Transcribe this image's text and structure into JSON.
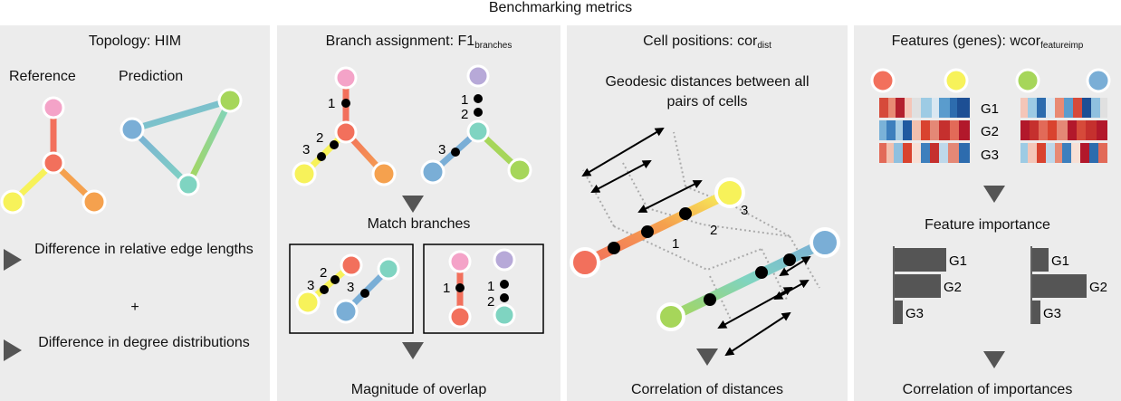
{
  "title": "Benchmarking metrics",
  "panels": {
    "topology": {
      "title": "Topology: HIM",
      "reference_label": "Reference",
      "prediction_label": "Prediction",
      "item1": "Difference in relative edge lengths",
      "plus": "+",
      "item2": "Difference in degree distributions"
    },
    "branch": {
      "title_main": "Branch assignment: F1",
      "title_sub": "branches",
      "match_label": "Match branches",
      "result_label": "Magnitude of overlap",
      "numbers": [
        "1",
        "2",
        "3"
      ]
    },
    "cells": {
      "title_main": "Cell positions: cor",
      "title_sub": "dist",
      "description": "Geodesic distances between all pairs of cells",
      "result_label": "Correlation of distances",
      "numbers": [
        "1",
        "2",
        "3"
      ]
    },
    "features": {
      "title_main": "Features (genes): wcor",
      "title_sub": "featureimp",
      "genes": [
        "G1",
        "G2",
        "G3"
      ],
      "importance_label": "Feature importance",
      "result_label": "Correlation of importances",
      "importance_ref": [
        0.95,
        0.85,
        0.15
      ],
      "importance_pred": [
        0.3,
        1.0,
        0.15
      ]
    }
  },
  "colors": {
    "panel_bg": "#ececec",
    "pink": "#f4a3c8",
    "red": "#f2705c",
    "yellow": "#f7f25a",
    "orange": "#f5a14e",
    "blue": "#7aaed6",
    "green": "#a6d65a",
    "teal": "#7fd4c1",
    "lavender": "#b7a9d8",
    "arrow": "#555555"
  }
}
